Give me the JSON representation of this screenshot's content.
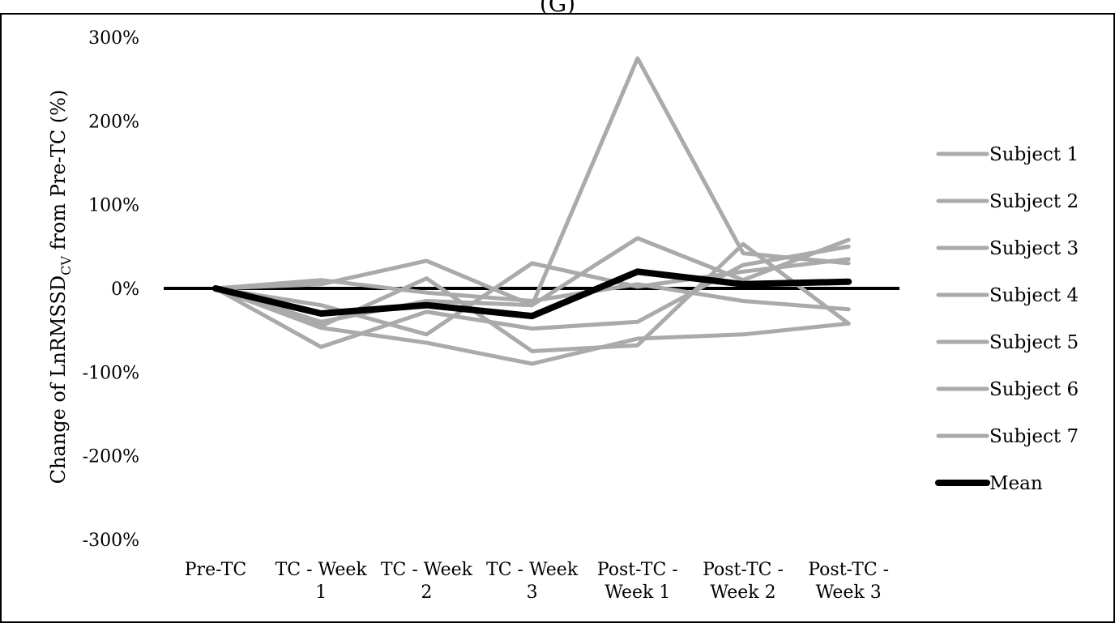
{
  "chart_data": {
    "type": "line",
    "title": "(G)",
    "ylabel": "Change of LnRMSSD",
    "ylabel_sub": "CV",
    "ylabel_tail": " from Pre-TC (%)",
    "categories": [
      [
        "Pre-TC"
      ],
      [
        "TC - Week",
        "1"
      ],
      [
        "TC - Week",
        "2"
      ],
      [
        "TC - Week",
        "3"
      ],
      [
        "Post-TC -",
        "Week 1"
      ],
      [
        "Post-TC -",
        "Week 2"
      ],
      [
        "Post-TC -",
        "Week 3"
      ]
    ],
    "yticks": [
      {
        "value": 300,
        "label": "300%"
      },
      {
        "value": 200,
        "label": "200%"
      },
      {
        "value": 100,
        "label": "100%"
      },
      {
        "value": 0,
        "label": "0%"
      },
      {
        "value": -100,
        "label": "-100%"
      },
      {
        "value": -200,
        "label": "-200%"
      },
      {
        "value": -300,
        "label": "-300%"
      }
    ],
    "ylim": [
      -300,
      300
    ],
    "legend_position": "right",
    "subject_color": "#aaaaaa",
    "mean_color": "#000000",
    "series": [
      {
        "name": "Subject 1",
        "values": [
          0,
          -45,
          12,
          -75,
          -68,
          53,
          -42
        ]
      },
      {
        "name": "Subject 2",
        "values": [
          0,
          10,
          -5,
          -15,
          5,
          -15,
          -25
        ]
      },
      {
        "name": "Subject 3",
        "values": [
          0,
          -47,
          -65,
          -90,
          -60,
          -55,
          -42
        ]
      },
      {
        "name": "Subject 4",
        "values": [
          0,
          -70,
          -28,
          -48,
          -40,
          28,
          50
        ]
      },
      {
        "name": "Subject 5",
        "values": [
          0,
          5,
          33,
          -20,
          275,
          42,
          30
        ]
      },
      {
        "name": "Subject 6",
        "values": [
          0,
          -20,
          -55,
          30,
          2,
          20,
          35
        ]
      },
      {
        "name": "Subject 7",
        "values": [
          0,
          -40,
          -15,
          -20,
          60,
          10,
          58
        ]
      },
      {
        "name": "Mean",
        "values": [
          0,
          -30,
          -20,
          -33,
          20,
          5,
          8
        ]
      }
    ]
  }
}
